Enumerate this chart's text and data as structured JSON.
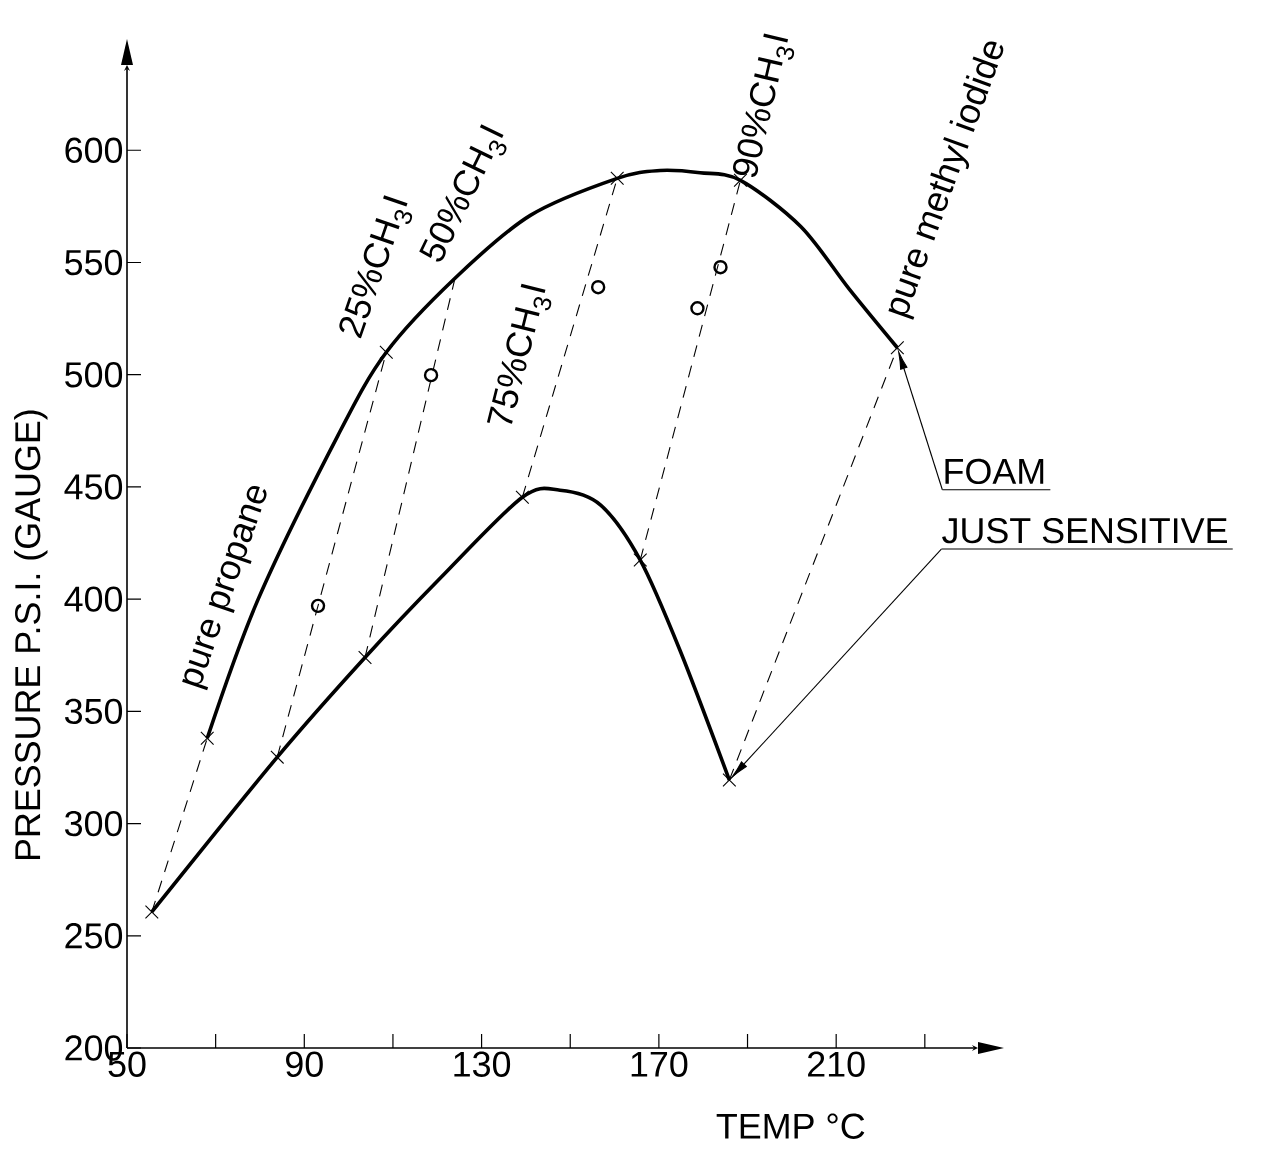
{
  "chart_data": {
    "type": "line",
    "xlabel": "TEMP °C",
    "ylabel": "PRESSURE P.S.I. (GAUGE)",
    "xlim": [
      50,
      242
    ],
    "ylim": [
      200,
      638
    ],
    "xticks": [
      50,
      {
        "value": 70,
        "label": null
      },
      90,
      {
        "value": 110,
        "label": null
      },
      130,
      {
        "value": 150,
        "label": null
      },
      170,
      {
        "value": 190,
        "label": null
      },
      210,
      {
        "value": 230,
        "label": null
      }
    ],
    "yticks": [
      200,
      250,
      300,
      350,
      400,
      450,
      500,
      550,
      600
    ],
    "series": [
      {
        "color": "#000000",
        "marker": "none",
        "line_style": "solid",
        "x": [
          68.1,
          79.6,
          97.6,
          108.5,
          124,
          141,
          160.6,
          170.3,
          179.3,
          188.4,
          202,
          213,
          223.8
        ],
        "values": [
          338,
          400,
          473,
          510,
          543,
          571,
          587.5,
          591,
          590,
          586.6,
          566,
          538,
          512
        ]
      },
      {
        "color": "#000000",
        "marker": "none",
        "line_style": "solid",
        "x": [
          55.6,
          83.9,
          103.7,
          120.7,
          139.2,
          147.7,
          156.8,
          165.8,
          174.8,
          185.9
        ],
        "values": [
          260.6,
          329.6,
          374,
          409.4,
          445.4,
          448.5,
          442,
          417.4,
          377,
          319.4
        ]
      },
      {
        "color": "#000000",
        "marker": "none",
        "line_style": "dashed",
        "x": [
          55.6,
          68.1
        ],
        "values": [
          260.6,
          338
        ]
      },
      {
        "color": "#000000",
        "marker": "none",
        "line_style": "dashed",
        "x": [
          83.9,
          108.5
        ],
        "values": [
          329.6,
          510
        ]
      },
      {
        "color": "#000000",
        "marker": "none",
        "line_style": "dashed",
        "x": [
          103.7,
          124
        ],
        "values": [
          374,
          543
        ]
      },
      {
        "color": "#000000",
        "marker": "none",
        "line_style": "dashed",
        "x": [
          139.2,
          160.6
        ],
        "values": [
          445.4,
          587.5
        ]
      },
      {
        "color": "#000000",
        "marker": "none",
        "line_style": "dashed",
        "x": [
          165.8,
          188.4
        ],
        "values": [
          417.4,
          586.6
        ]
      },
      {
        "color": "#000000",
        "marker": "none",
        "line_style": "dashed",
        "x": [
          185.9,
          223.8
        ],
        "values": [
          319.4,
          512
        ]
      },
      {
        "type": "scatter",
        "color": "#000000",
        "marker": "cross",
        "x": [
          55.6,
          68.1,
          83.9,
          108.5,
          103.7,
          139.2,
          160.6,
          165.8,
          188.4,
          185.9,
          223.8
        ],
        "values": [
          260.6,
          338,
          329.6,
          510,
          374,
          445.4,
          587.5,
          417.4,
          586.6,
          319.4,
          512
        ]
      },
      {
        "type": "scatter",
        "color": "#000000",
        "marker": "circle",
        "x": [
          93.1,
          118.6,
          156.3,
          178.7,
          183.9
        ],
        "values": [
          397,
          499.8,
          539,
          529.6,
          547.9
        ]
      }
    ],
    "annotations": [
      {
        "text": "pure propane",
        "x": 68.1,
        "y": 338
      },
      {
        "text": "25%CH$_{3}$I",
        "x": 108.5,
        "y": 510
      },
      {
        "text": "50%CH$_{3}$I",
        "x": 124,
        "y": 543
      },
      {
        "text": "75%CH$_{3}$I",
        "x": 139.2,
        "y": 445.4
      },
      {
        "text": "90%CH$_{3}$I",
        "x": 188.4,
        "y": 586.6
      },
      {
        "text": "pure methyl iodide",
        "x": 223.8,
        "y": 512
      },
      "FOAM",
      "JUST SENSITIVE"
    ]
  }
}
